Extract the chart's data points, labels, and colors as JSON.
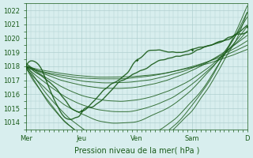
{
  "title": "",
  "xlabel": "Pression niveau de la mer( hPa )",
  "ylabel": "",
  "background_color": "#d8eeee",
  "grid_color": "#b0d0d0",
  "line_color": "#1a5c1a",
  "ylim": [
    1013.5,
    1022.5
  ],
  "yticks": [
    1014,
    1015,
    1016,
    1017,
    1018,
    1019,
    1020,
    1021,
    1022
  ],
  "day_labels": [
    "Mer",
    "Jeu",
    "Ven",
    "Sam",
    "D"
  ],
  "day_positions": [
    0,
    48,
    96,
    144,
    192
  ],
  "num_points": 193
}
